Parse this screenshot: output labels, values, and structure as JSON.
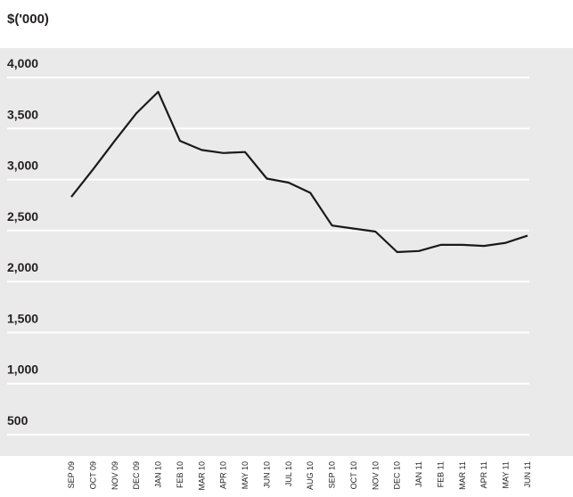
{
  "chart_data": {
    "type": "line",
    "title": "",
    "ylabel": "$('000)",
    "xlabel": "",
    "ylim": [
      0,
      4000
    ],
    "yticks": [
      {
        "value": 500,
        "label": "500"
      },
      {
        "value": 1000,
        "label": "1,000"
      },
      {
        "value": 1500,
        "label": "1,500"
      },
      {
        "value": 2000,
        "label": "2,000"
      },
      {
        "value": 2500,
        "label": "2,500"
      },
      {
        "value": 3000,
        "label": "3,000"
      },
      {
        "value": 3500,
        "label": "3,500"
      },
      {
        "value": 4000,
        "label": "4,000"
      }
    ],
    "grid": true,
    "legend": "none",
    "categories": [
      "SEP 09",
      "OCT 09",
      "NOV 09",
      "DEC 09",
      "JAN 10",
      "FEB 10",
      "MAR 10",
      "APR 10",
      "MAY 10",
      "JUN 10",
      "JUL 10",
      "AUG 10",
      "SEP 10",
      "OCT 10",
      "NOV 10",
      "DEC 10",
      "JAN 11",
      "FEB 11",
      "MAR 11",
      "APR 11",
      "MAY 11",
      "JUN 11"
    ],
    "series": [
      {
        "values": [
          2690,
          2960,
          3240,
          3510,
          3720,
          3240,
          3150,
          3120,
          3130,
          2870,
          2830,
          2730,
          2410,
          2380,
          2350,
          2150,
          2160,
          2220,
          2220,
          2210,
          2240,
          2310
        ]
      }
    ],
    "colors": {
      "plot_background": "#ebeaeb",
      "line": "#1a1a1a",
      "grid": "#ffffff"
    }
  }
}
